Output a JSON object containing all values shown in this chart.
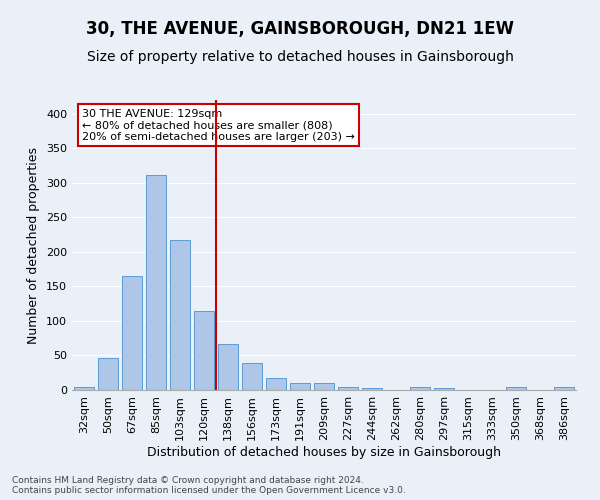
{
  "title": "30, THE AVENUE, GAINSBOROUGH, DN21 1EW",
  "subtitle": "Size of property relative to detached houses in Gainsborough",
  "xlabel": "Distribution of detached houses by size in Gainsborough",
  "ylabel": "Number of detached properties",
  "footer_line1": "Contains HM Land Registry data © Crown copyright and database right 2024.",
  "footer_line2": "Contains public sector information licensed under the Open Government Licence v3.0.",
  "categories": [
    "32sqm",
    "50sqm",
    "67sqm",
    "85sqm",
    "103sqm",
    "120sqm",
    "138sqm",
    "156sqm",
    "173sqm",
    "191sqm",
    "209sqm",
    "227sqm",
    "244sqm",
    "262sqm",
    "280sqm",
    "297sqm",
    "315sqm",
    "333sqm",
    "350sqm",
    "368sqm",
    "386sqm"
  ],
  "values": [
    5,
    46,
    165,
    312,
    217,
    115,
    67,
    39,
    18,
    10,
    10,
    5,
    3,
    0,
    4,
    3,
    0,
    0,
    4,
    0,
    4
  ],
  "bar_color": "#aec6e8",
  "bar_edge_color": "#5b9bd5",
  "vline_color": "#cc0000",
  "annotation_text": "30 THE AVENUE: 129sqm\n← 80% of detached houses are smaller (808)\n20% of semi-detached houses are larger (203) →",
  "annotation_box_color": "#ffffff",
  "annotation_box_edge_color": "#cc0000",
  "ylim": [
    0,
    420
  ],
  "yticks": [
    0,
    50,
    100,
    150,
    200,
    250,
    300,
    350,
    400
  ],
  "bg_color": "#eaf0f8",
  "plot_bg_color": "#eaf0f8",
  "grid_color": "#ffffff",
  "title_fontsize": 12,
  "subtitle_fontsize": 10,
  "tick_fontsize": 8,
  "ylabel_fontsize": 9,
  "xlabel_fontsize": 9,
  "annotation_fontsize": 8
}
